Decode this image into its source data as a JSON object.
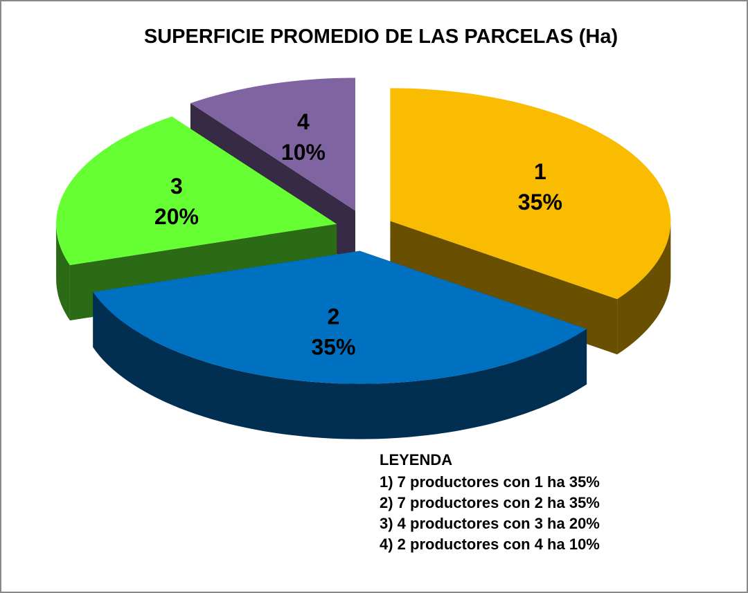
{
  "chart_data": {
    "type": "pie",
    "title": "SUPERFICIE PROMEDIO DE LAS PARCELAS (Ha)",
    "categories": [
      "1",
      "2",
      "3",
      "4"
    ],
    "values": [
      35,
      35,
      20,
      10
    ],
    "value_labels": [
      "35%",
      "35%",
      "20%",
      "10%"
    ],
    "colors": [
      "#f9bc00",
      "#0070c0",
      "#66ff33",
      "#8064a2"
    ],
    "legend_title": "LEYENDA",
    "legend_lines": [
      "1) 7 productores con 1 ha 35%",
      "2) 7 productores con 2 ha 35%",
      "3) 4 productores con 3 ha 20%",
      "4) 2 productores con 4 ha 10%"
    ]
  }
}
